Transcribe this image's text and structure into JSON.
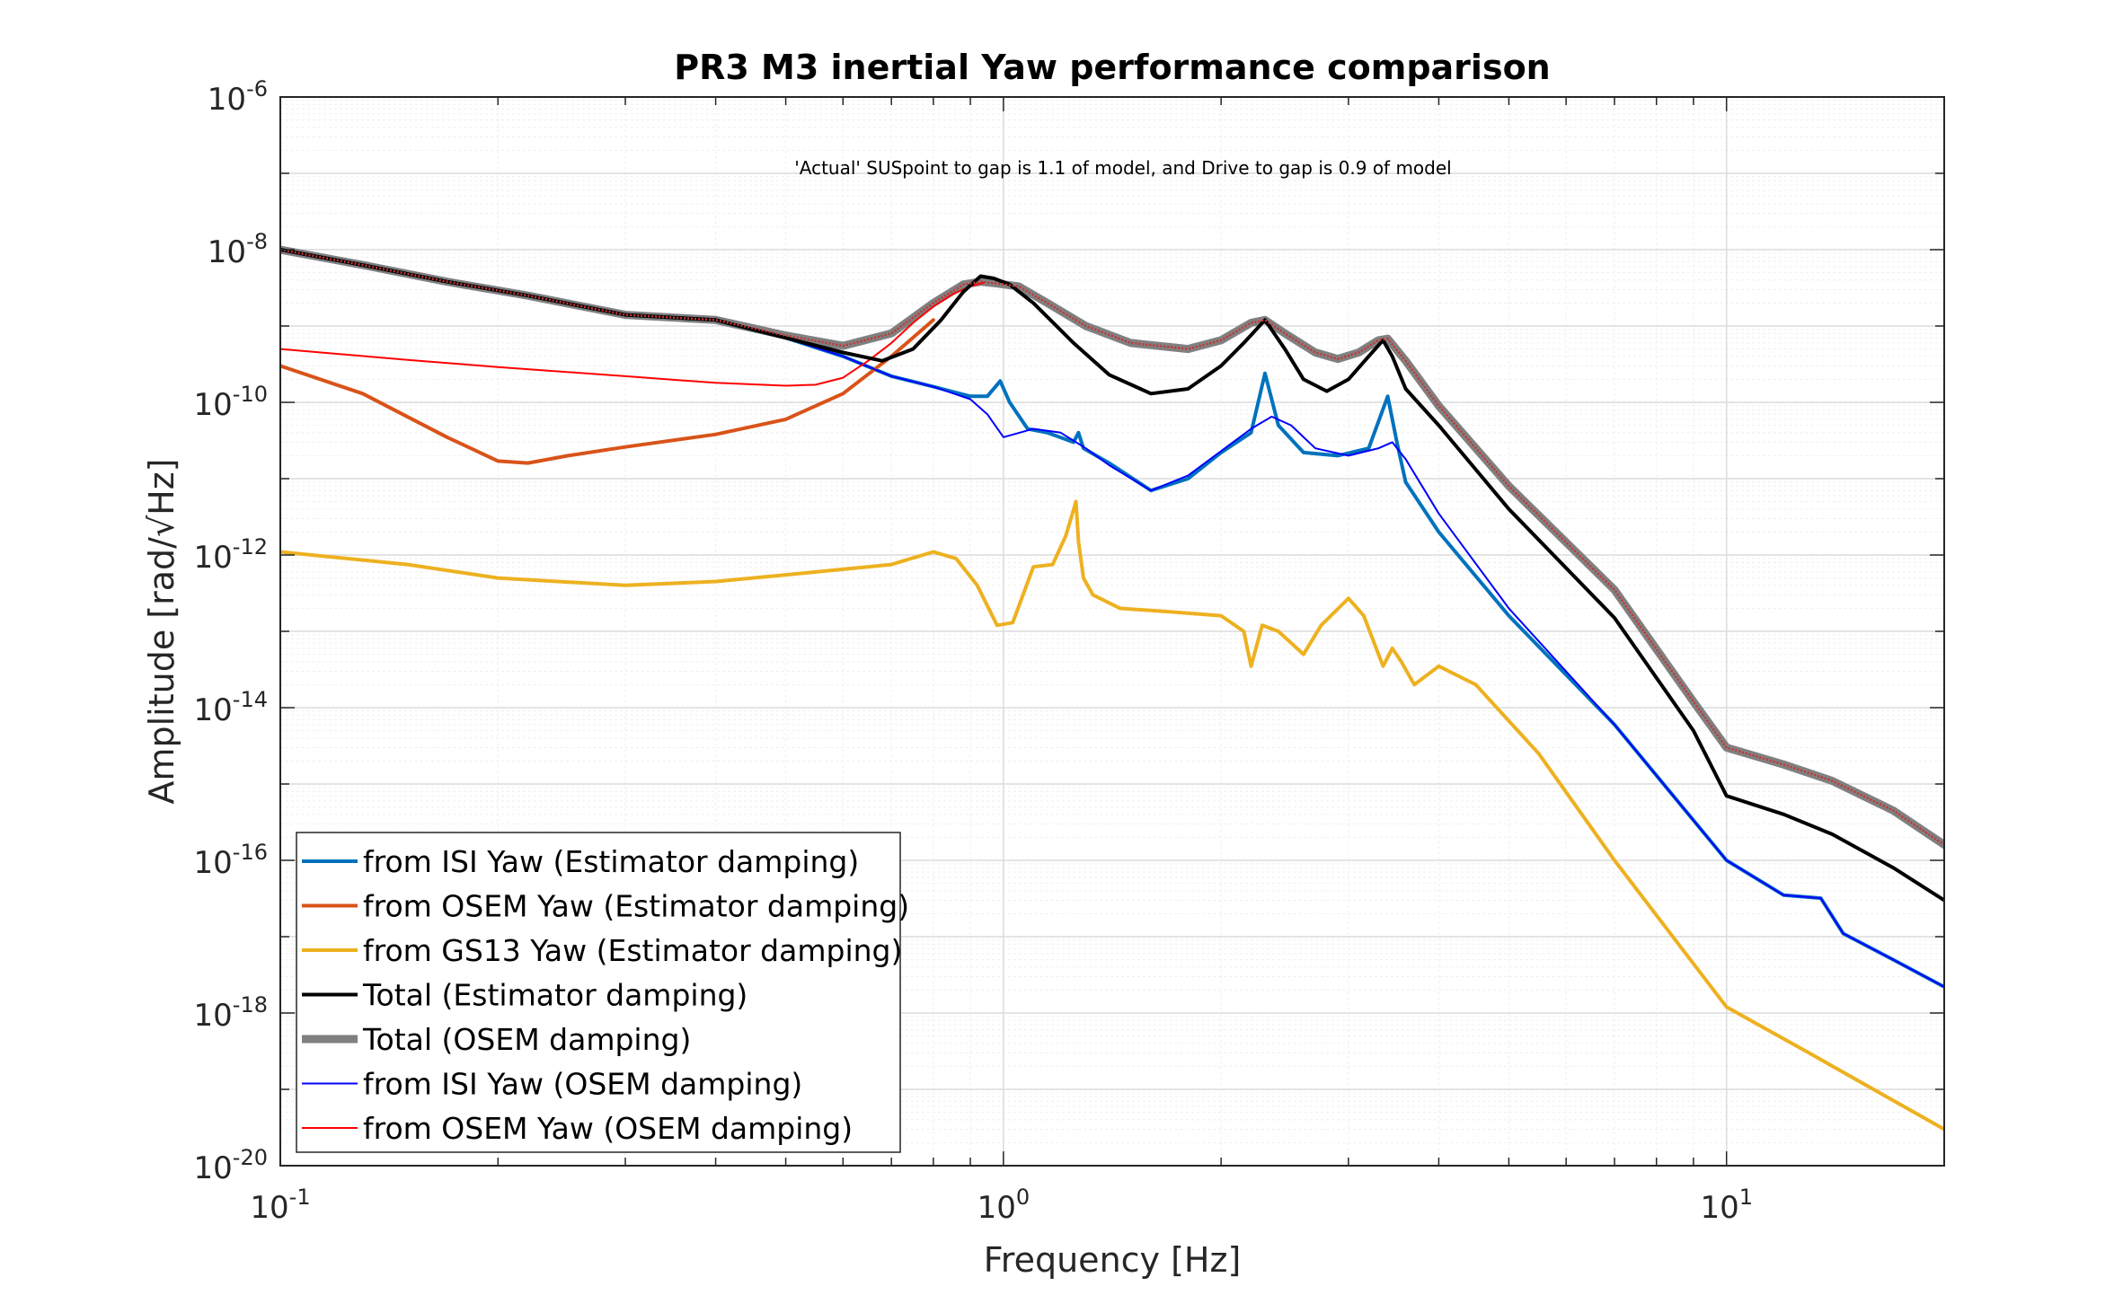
{
  "chart_data": {
    "type": "line",
    "title": "PR3 M3 inertial Yaw performance comparison",
    "annotation": "'Actual' SUSpoint to gap is 1.1 of model, and Drive to gap is 0.9 of model",
    "xlabel": "Frequency [Hz]",
    "ylabel": "Amplitude [rad/√Hz]",
    "xscale": "log",
    "yscale": "log",
    "xlim": [
      0.1,
      20
    ],
    "ylim": [
      1e-20,
      1e-06
    ],
    "grid": true,
    "legend_location": "bottom-left",
    "x_ticks": [
      {
        "value": 0.1,
        "base": "10",
        "exp": "-1"
      },
      {
        "value": 1,
        "base": "10",
        "exp": "0"
      },
      {
        "value": 10,
        "base": "10",
        "exp": "1"
      }
    ],
    "y_ticks": [
      {
        "value": 1e-06,
        "base": "10",
        "exp": "-6"
      },
      {
        "value": 1e-08,
        "base": "10",
        "exp": "-8"
      },
      {
        "value": 1e-10,
        "base": "10",
        "exp": "-10"
      },
      {
        "value": 1e-12,
        "base": "10",
        "exp": "-12"
      },
      {
        "value": 1e-14,
        "base": "10",
        "exp": "-14"
      },
      {
        "value": 1e-16,
        "base": "10",
        "exp": "-16"
      },
      {
        "value": 1e-18,
        "base": "10",
        "exp": "-18"
      },
      {
        "value": 1e-20,
        "base": "10",
        "exp": "-20"
      }
    ],
    "series": [
      {
        "name": "from ISI Yaw (Estimator damping)",
        "color": "#0072BD",
        "width": 4,
        "x": [
          0.1,
          0.13,
          0.17,
          0.22,
          0.3,
          0.4,
          0.5,
          0.6,
          0.7,
          0.8,
          0.9,
          0.95,
          0.99,
          1.02,
          1.08,
          1.15,
          1.25,
          1.27,
          1.29,
          1.4,
          1.6,
          1.8,
          2.0,
          2.2,
          2.3,
          2.4,
          2.6,
          2.9,
          3.2,
          3.4,
          3.5,
          3.6,
          4.0,
          5.0,
          7.0,
          10.0,
          12.0,
          13.5,
          14.5,
          17.0,
          20.0
        ],
        "y": [
          1e-08,
          6.3e-09,
          3.8e-09,
          2.5e-09,
          1.4e-09,
          1.2e-09,
          7e-10,
          4e-10,
          2.2e-10,
          1.6e-10,
          1.2e-10,
          1.2e-10,
          1.9e-10,
          1e-10,
          4.5e-11,
          4e-11,
          3e-11,
          4e-11,
          2.5e-11,
          1.6e-11,
          7e-12,
          1e-11,
          2.2e-11,
          4e-11,
          2.4e-10,
          5e-11,
          2.2e-11,
          2e-11,
          2.5e-11,
          1.2e-10,
          3e-11,
          9e-12,
          2e-12,
          1.6e-13,
          6e-15,
          1e-16,
          3.5e-17,
          3.2e-17,
          1.1e-17,
          5e-18,
          2.2e-18
        ]
      },
      {
        "name": "from OSEM Yaw (Estimator damping)",
        "color": "#D95319",
        "width": 4,
        "x": [
          0.1,
          0.13,
          0.17,
          0.2,
          0.22,
          0.25,
          0.3,
          0.4,
          0.5,
          0.6,
          0.7,
          0.8
        ],
        "y": [
          3e-10,
          1.3e-10,
          3.5e-11,
          1.7e-11,
          1.6e-11,
          2e-11,
          2.6e-11,
          3.8e-11,
          6e-11,
          1.3e-10,
          4e-10,
          1.2e-09
        ]
      },
      {
        "name": "from GS13 Yaw (Estimator damping)",
        "color": "#EDB120",
        "width": 4,
        "x": [
          0.1,
          0.15,
          0.2,
          0.3,
          0.4,
          0.5,
          0.6,
          0.7,
          0.76,
          0.8,
          0.86,
          0.92,
          0.98,
          1.03,
          1.1,
          1.17,
          1.22,
          1.26,
          1.27,
          1.29,
          1.33,
          1.45,
          1.7,
          2.0,
          2.15,
          2.2,
          2.28,
          2.4,
          2.6,
          2.75,
          3.0,
          3.15,
          3.35,
          3.45,
          3.55,
          3.7,
          4.0,
          4.5,
          5.5,
          7.0,
          10.0,
          13.0,
          20.0
        ],
        "y": [
          1.1e-12,
          7.5e-13,
          5e-13,
          4e-13,
          4.5e-13,
          5.5e-13,
          6.5e-13,
          7.5e-13,
          9.5e-13,
          1.1e-12,
          9e-13,
          4e-13,
          1.2e-13,
          1.3e-13,
          7e-13,
          7.5e-13,
          1.8e-12,
          5e-12,
          1.5e-12,
          5e-13,
          3e-13,
          2e-13,
          1.8e-13,
          1.6e-13,
          1e-13,
          3.5e-14,
          1.2e-13,
          1e-13,
          5e-14,
          1.2e-13,
          2.7e-13,
          1.6e-13,
          3.5e-14,
          6e-14,
          4e-14,
          2e-14,
          3.5e-14,
          2e-14,
          2.5e-15,
          1e-16,
          1.2e-18,
          3e-19,
          3e-20
        ]
      },
      {
        "name": "Total (Estimator damping)",
        "color": "#000000",
        "width": 4,
        "x": [
          0.1,
          0.13,
          0.17,
          0.22,
          0.3,
          0.4,
          0.5,
          0.6,
          0.68,
          0.75,
          0.82,
          0.88,
          0.93,
          0.97,
          1.02,
          1.1,
          1.25,
          1.4,
          1.6,
          1.8,
          2.0,
          2.15,
          2.3,
          2.45,
          2.6,
          2.8,
          3.0,
          3.2,
          3.35,
          3.45,
          3.6,
          4.0,
          5.0,
          7.0,
          9.0,
          10.0,
          12.0,
          14.0,
          17.0,
          20.0
        ],
        "y": [
          1e-08,
          6.3e-09,
          3.8e-09,
          2.5e-09,
          1.4e-09,
          1.2e-09,
          7e-10,
          4.5e-10,
          3.5e-10,
          5e-10,
          1.2e-09,
          2.8e-09,
          4.5e-09,
          4.2e-09,
          3.5e-09,
          2e-09,
          6e-10,
          2.3e-10,
          1.3e-10,
          1.5e-10,
          3e-10,
          6e-10,
          1.2e-09,
          5e-10,
          2e-10,
          1.4e-10,
          2e-10,
          4e-10,
          6.5e-10,
          4e-10,
          1.5e-10,
          5e-11,
          4e-12,
          1.5e-13,
          5e-15,
          7e-16,
          4e-16,
          2.2e-16,
          8e-17,
          3e-17
        ]
      },
      {
        "name": "Total (OSEM damping)",
        "color": "#808080",
        "width": 9,
        "x": [
          0.1,
          0.13,
          0.17,
          0.22,
          0.3,
          0.4,
          0.5,
          0.6,
          0.7,
          0.8,
          0.88,
          0.93,
          0.98,
          1.05,
          1.15,
          1.3,
          1.5,
          1.8,
          2.0,
          2.2,
          2.3,
          2.45,
          2.7,
          2.9,
          3.1,
          3.3,
          3.4,
          3.6,
          4.0,
          5.0,
          7.0,
          9.0,
          10.0,
          12.0,
          14.0,
          17.0,
          20.0
        ],
        "y": [
          1e-08,
          6.3e-09,
          3.8e-09,
          2.5e-09,
          1.4e-09,
          1.2e-09,
          7.5e-10,
          5.5e-10,
          8e-10,
          2e-09,
          3.5e-09,
          3.8e-09,
          3.6e-09,
          3.3e-09,
          2e-09,
          1e-09,
          6e-10,
          5e-10,
          6.5e-10,
          1.1e-09,
          1.2e-09,
          8e-10,
          4.5e-10,
          3.7e-10,
          4.5e-10,
          6.5e-10,
          6.8e-10,
          3.5e-10,
          9e-11,
          8e-12,
          3.5e-13,
          1.2e-14,
          3e-15,
          1.8e-15,
          1.1e-15,
          4.5e-16,
          1.6e-16
        ]
      },
      {
        "name": "from ISI Yaw (OSEM damping)",
        "color": "#0000FF",
        "width": 2,
        "x": [
          0.1,
          0.13,
          0.17,
          0.22,
          0.3,
          0.4,
          0.5,
          0.6,
          0.7,
          0.8,
          0.9,
          0.95,
          1.0,
          1.1,
          1.2,
          1.3,
          1.4,
          1.6,
          1.8,
          2.0,
          2.2,
          2.35,
          2.5,
          2.7,
          3.0,
          3.3,
          3.45,
          3.6,
          4.0,
          5.0,
          7.0,
          10.0,
          12.0,
          13.5,
          14.5,
          17.0,
          20.0
        ],
        "y": [
          1e-08,
          6.3e-09,
          3.8e-09,
          2.5e-09,
          1.4e-09,
          1.2e-09,
          7e-10,
          4e-10,
          2.2e-10,
          1.6e-10,
          1.1e-10,
          7e-11,
          3.5e-11,
          4.5e-11,
          4e-11,
          2.5e-11,
          1.5e-11,
          7e-12,
          1.1e-11,
          2.3e-11,
          4.5e-11,
          6.5e-11,
          5e-11,
          2.5e-11,
          2e-11,
          2.5e-11,
          3e-11,
          1.8e-11,
          3.5e-12,
          2e-13,
          6e-15,
          1e-16,
          3.5e-17,
          3.2e-17,
          1.1e-17,
          5e-18,
          2.2e-18
        ]
      },
      {
        "name": "from OSEM Yaw (OSEM damping)",
        "color": "#FF0000",
        "width": 2,
        "x": [
          0.1,
          0.15,
          0.2,
          0.3,
          0.4,
          0.5,
          0.55,
          0.6,
          0.65,
          0.7,
          0.75,
          0.8,
          0.85,
          0.9,
          0.94
        ],
        "y": [
          5e-10,
          3.6e-10,
          2.9e-10,
          2.2e-10,
          1.8e-10,
          1.65e-10,
          1.7e-10,
          2.1e-10,
          3.5e-10,
          6e-10,
          1.1e-09,
          1.8e-09,
          2.6e-09,
          3.3e-09,
          3.7e-09
        ]
      }
    ]
  }
}
